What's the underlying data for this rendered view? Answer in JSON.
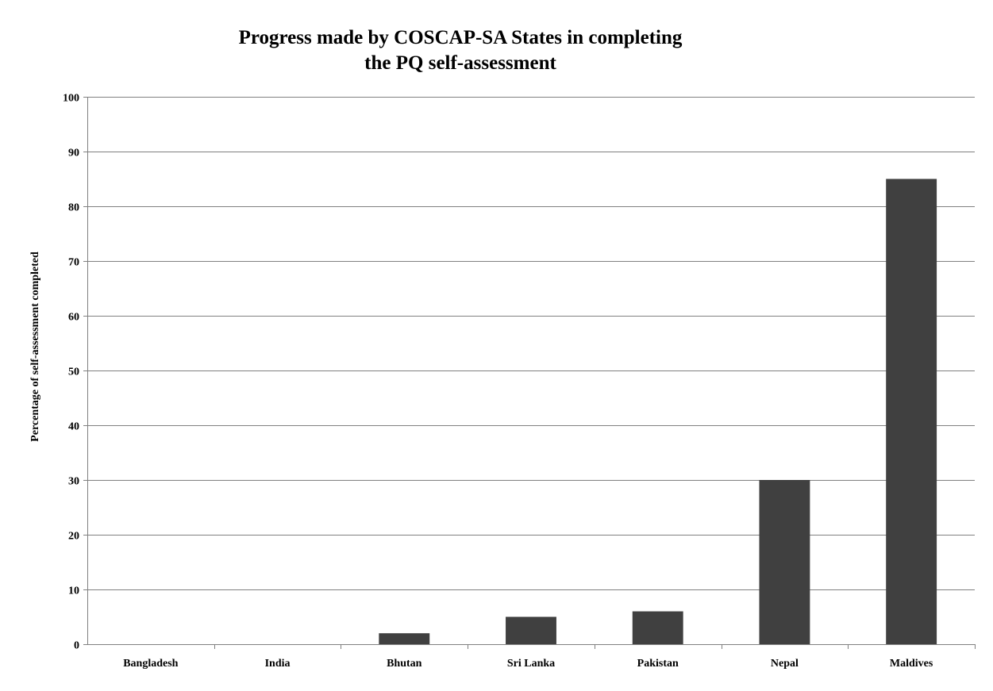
{
  "chart_data": {
    "type": "bar",
    "title_lines": [
      "Progress made by COSCAP-SA States in completing",
      "the PQ self-assessment"
    ],
    "xlabel": "",
    "ylabel": "Percentage of self-assessment completed",
    "categories": [
      "Bangladesh",
      "India",
      "Bhutan",
      "Sri Lanka",
      "Pakistan",
      "Nepal",
      "Maldives"
    ],
    "values": [
      0,
      0,
      2,
      5,
      6,
      30,
      85
    ],
    "ylim": [
      0,
      100
    ],
    "yticks": [
      0,
      10,
      20,
      30,
      40,
      50,
      60,
      70,
      80,
      90,
      100
    ],
    "grid": true,
    "legend": "none",
    "bar_color": "#404040",
    "grid_color": "#808080",
    "axis_color": "#808080"
  }
}
